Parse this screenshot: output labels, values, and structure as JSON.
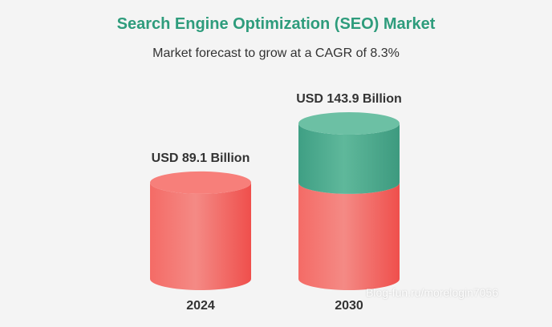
{
  "chart_data": {
    "type": "bar",
    "title": "Search Engine Optimization (SEO) Market",
    "subtitle": "Market forecast to grow at a CAGR of 8.3%",
    "categories": [
      "2024",
      "2030"
    ],
    "values": [
      89.1,
      143.9
    ],
    "value_labels": [
      "USD 89.1 Billion",
      "USD 143.9 Billion"
    ],
    "unit": "USD Billion",
    "cagr": "8.3%",
    "bar_style": "cylinder",
    "growth_segment_on_last_bar": true,
    "colors": {
      "base": "#f25f5c",
      "growth": "#45a88a",
      "title": "#2e9c7c"
    }
  },
  "watermark": "Blog-fun.ru/morelogin7056"
}
